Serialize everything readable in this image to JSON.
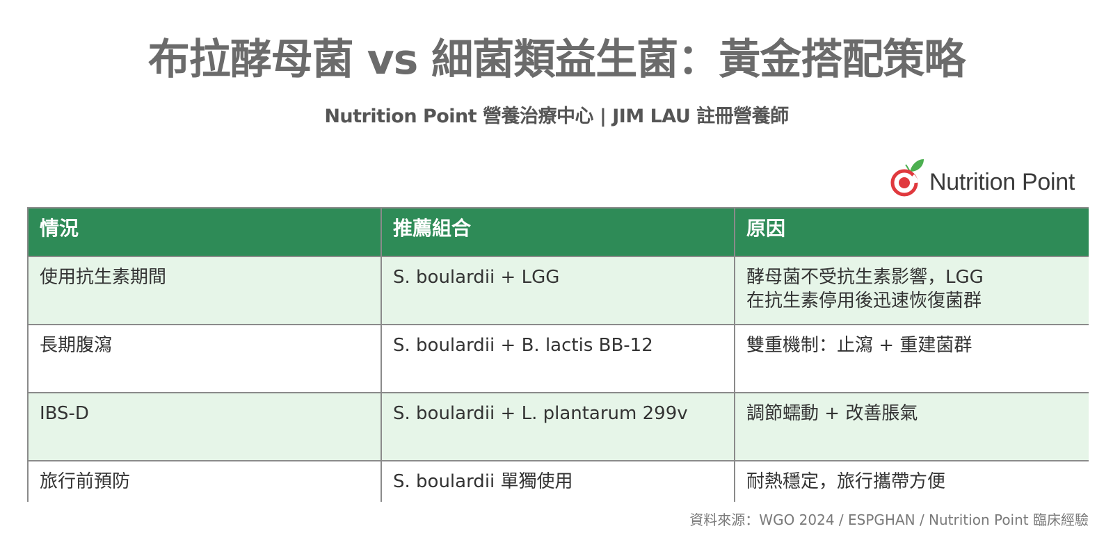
{
  "title": "布拉酵母菌 vs 細菌類益生菌：黃金搭配策略",
  "subtitle": "Nutrition Point 營養治療中心 | JIM LAU 註冊營養師",
  "logo": {
    "text": "Nutrition Point",
    "icon": "apple-leaf-logo-icon",
    "colors": {
      "ring": "#e0393e",
      "leaf": "#4caf50",
      "dot": "#e0393e"
    }
  },
  "table": {
    "headers": [
      "情況",
      "推薦組合",
      "原因"
    ],
    "header_color": "#2e8b57",
    "stripe_color": "#e6f5e8",
    "rows": [
      {
        "situation": "使用抗生素期間",
        "combo": "S. boulardii + LGG",
        "reason_lines": [
          "酵母菌不受抗生素影響，LGG",
          "在抗生素停用後迅速恢復菌群"
        ]
      },
      {
        "situation": "長期腹瀉",
        "combo": "S. boulardii + B. lactis BB-12",
        "reason_lines": [
          "雙重機制：止瀉 + 重建菌群"
        ]
      },
      {
        "situation": "IBS-D",
        "combo": "S. boulardii + L. plantarum 299v",
        "reason_lines": [
          "調節蠕動 + 改善脹氣"
        ]
      },
      {
        "situation": "旅行前預防",
        "combo": "S. boulardii 單獨使用",
        "reason_lines": [
          "耐熱穩定，旅行攜帶方便"
        ]
      }
    ]
  },
  "source": "資料來源：WGO 2024 / ESPGHAN / Nutrition Point 臨床經驗"
}
